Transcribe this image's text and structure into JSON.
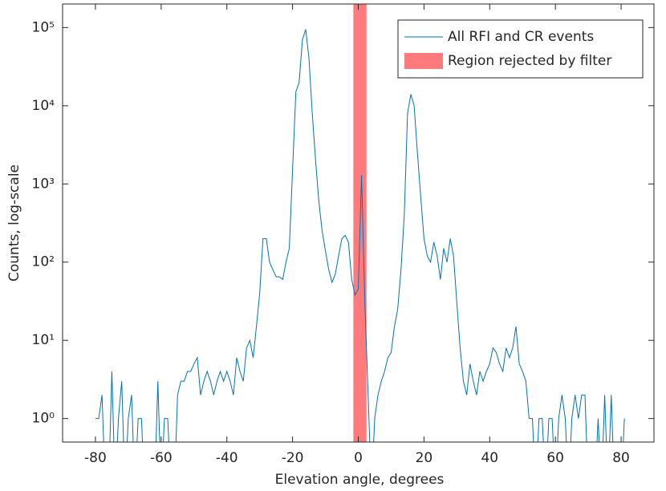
{
  "chart_data": {
    "type": "line",
    "xlabel": "Elevation angle, degrees",
    "ylabel": "Counts, log-scale",
    "x": [
      -80,
      -79,
      -78,
      -77,
      -76,
      -75,
      -74,
      -73,
      -72,
      -71,
      -70,
      -69,
      -68,
      -67,
      -66,
      -65,
      -64,
      -63,
      -62,
      -61,
      -60,
      -59,
      -58,
      -57,
      -56,
      -55,
      -54,
      -53,
      -52,
      -51,
      -50,
      -49,
      -48,
      -47,
      -46,
      -45,
      -44,
      -43,
      -42,
      -41,
      -40,
      -39,
      -38,
      -37,
      -36,
      -35,
      -34,
      -33,
      -32,
      -31,
      -30,
      -29,
      -28,
      -27,
      -26,
      -25,
      -24,
      -23,
      -22,
      -21,
      -20,
      -19,
      -18,
      -17,
      -16,
      -15,
      -14,
      -13,
      -12,
      -11,
      -10,
      -9,
      -8,
      -7,
      -6,
      -5,
      -4,
      -3,
      -2,
      -1,
      0,
      1,
      2,
      3,
      4,
      5,
      6,
      7,
      8,
      9,
      10,
      11,
      12,
      13,
      14,
      15,
      16,
      17,
      18,
      19,
      20,
      21,
      22,
      23,
      24,
      25,
      26,
      27,
      28,
      29,
      30,
      31,
      32,
      33,
      34,
      35,
      36,
      37,
      38,
      39,
      40,
      41,
      42,
      43,
      44,
      45,
      46,
      47,
      48,
      49,
      50,
      51,
      52,
      53,
      54,
      55,
      56,
      57,
      58,
      59,
      60,
      61,
      62,
      63,
      64,
      65,
      66,
      67,
      68,
      69,
      70,
      71,
      72,
      73,
      74,
      75,
      76,
      77,
      78,
      79,
      80,
      81
    ],
    "series": [
      {
        "name": "All RFI and CR events",
        "color": "#0072bd",
        "values": [
          1,
          1,
          2,
          0,
          0,
          4,
          0,
          1,
          3,
          0,
          1,
          2,
          0,
          1,
          1,
          0,
          0,
          0,
          0,
          3,
          0,
          1,
          1,
          0,
          0,
          2,
          3,
          3,
          4,
          4,
          5,
          6,
          2,
          3,
          4,
          3,
          2,
          3,
          4,
          3,
          4,
          3,
          2,
          6,
          4,
          3,
          8,
          10,
          6,
          15,
          40,
          200,
          200,
          100,
          80,
          65,
          65,
          60,
          100,
          150,
          1500,
          15000,
          20000,
          70000,
          95000,
          40000,
          8000,
          2000,
          600,
          250,
          140,
          80,
          55,
          70,
          120,
          200,
          220,
          180,
          60,
          38,
          45,
          1300,
          30,
          2,
          0,
          1,
          2,
          3,
          4,
          6,
          7,
          15,
          25,
          80,
          400,
          8000,
          14000,
          10000,
          2500,
          700,
          200,
          120,
          100,
          180,
          120,
          60,
          150,
          100,
          200,
          120,
          30,
          8,
          3,
          2,
          5,
          3,
          2,
          4,
          3,
          4,
          5,
          8,
          7,
          5,
          4,
          8,
          6,
          8,
          15,
          5,
          4,
          3,
          1,
          1,
          0,
          1,
          1,
          0,
          1,
          1,
          0,
          1,
          2,
          1,
          0,
          1,
          2,
          1,
          2,
          2,
          0,
          0,
          0,
          1,
          0,
          2,
          0,
          2,
          0,
          0,
          0,
          1
        ]
      }
    ],
    "regions": [
      {
        "name": "Region rejected by filter",
        "color": "#ff7b7b",
        "x": [
          -1.5,
          2.5
        ]
      }
    ],
    "xlim": [
      -90,
      90
    ],
    "xticks": [
      -80,
      -60,
      -40,
      -20,
      0,
      20,
      40,
      60,
      80
    ],
    "ylim": [
      0.5,
      200000
    ],
    "ylog": true,
    "yticks": [
      {
        "value": 1,
        "label": "10⁰"
      },
      {
        "value": 10,
        "label": "10¹"
      },
      {
        "value": 100,
        "label": "10²"
      },
      {
        "value": 1000,
        "label": "10³"
      },
      {
        "value": 10000,
        "label": "10⁴"
      },
      {
        "value": 100000,
        "label": "10⁵"
      }
    ],
    "legend": "upper right",
    "grid": false
  }
}
